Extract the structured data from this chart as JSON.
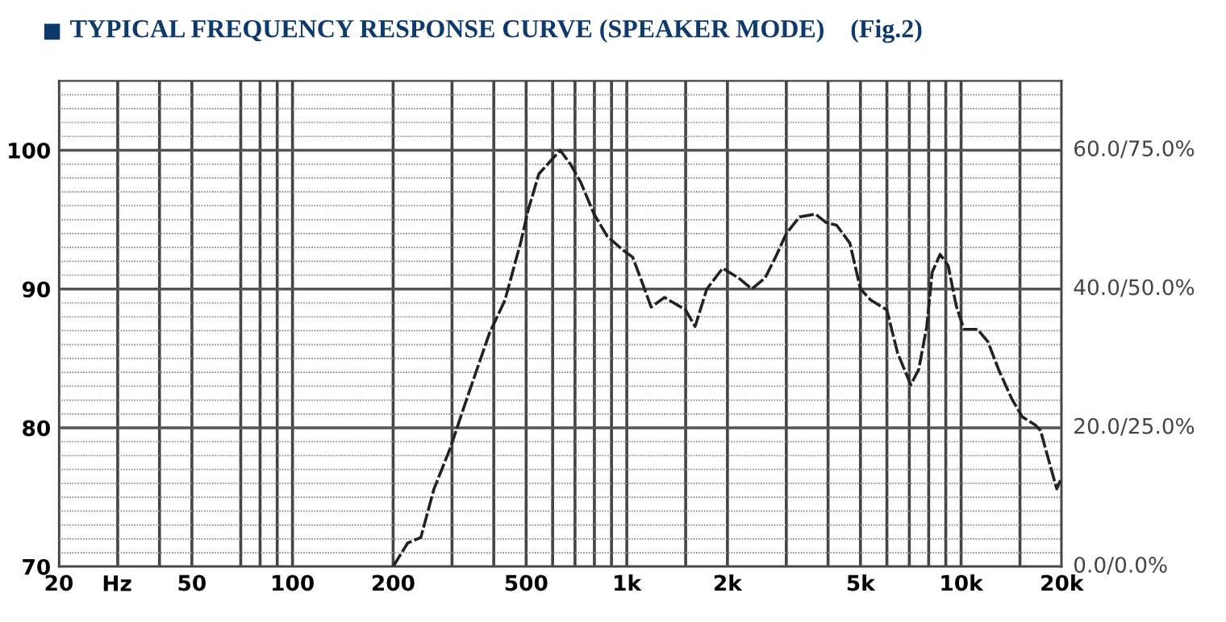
{
  "chart_data": {
    "type": "line",
    "title": "TYPICAL FREQUENCY RESPONSE CURVE (SPEAKER MODE)    (Fig.2)",
    "xlabel": "Hz",
    "log": "x",
    "grid": true,
    "line_style": "dashed",
    "marker": "none",
    "xlim": [
      20,
      20000
    ],
    "ylim": [
      70,
      105
    ],
    "annotations": [
      "0.0/0.0%",
      "20.0/25.0%",
      "40.0/50.0%",
      "60.0/75.0%"
    ],
    "xticks": [
      20,
      {
        "value": 30,
        "label": null
      },
      {
        "value": 40,
        "label": null
      },
      50,
      {
        "value": 70,
        "label": null
      },
      {
        "value": 80,
        "label": null
      },
      {
        "value": 90,
        "label": null
      },
      100,
      200,
      {
        "value": 300,
        "label": null
      },
      {
        "value": 400,
        "label": null
      },
      500,
      {
        "value": 600,
        "label": null
      },
      {
        "value": 700,
        "label": null
      },
      {
        "value": 800,
        "label": null
      },
      {
        "value": 900,
        "label": null
      },
      {
        "value": 1000,
        "label": "1k"
      },
      {
        "value": 1500,
        "label": null
      },
      {
        "value": 2000,
        "label": "2k"
      },
      {
        "value": 3000,
        "label": null
      },
      {
        "value": 4000,
        "label": null
      },
      {
        "value": 5000,
        "label": "5k"
      },
      {
        "value": 6000,
        "label": null
      },
      {
        "value": 7000,
        "label": null
      },
      {
        "value": 8000,
        "label": null
      },
      {
        "value": 9000,
        "label": null
      },
      {
        "value": 10000,
        "label": "10k"
      },
      {
        "value": 15000,
        "label": null
      },
      {
        "value": 20000,
        "label": "20k"
      }
    ],
    "yticks": [
      70,
      80,
      90,
      100
    ],
    "series": [
      {
        "color": "#222222",
        "x": [
          200,
          221,
          242,
          265,
          296,
          329,
          388,
          432,
          482,
          507,
          546,
          632,
          678,
          728,
          798,
          874,
          975,
          1041,
          1099,
          1183,
          1296,
          1499,
          1601,
          1735,
          1936,
          2160,
          2366,
          2592,
          2786,
          3000,
          3283,
          3666,
          3943,
          4244,
          4650,
          5000,
          5371,
          5997,
          6456,
          7071,
          7467,
          7895,
          8193,
          8654,
          9146,
          9669,
          10200,
          11200,
          12030,
          12950,
          14170,
          15230,
          16670,
          17290,
          18270,
          19330,
          19900
        ],
        "values": [
          70,
          71.7,
          72.1,
          75.6,
          78.5,
          81.8,
          86.8,
          89.2,
          93.4,
          95.7,
          98.3,
          100,
          99,
          97.7,
          95.4,
          93.8,
          92.8,
          92.3,
          90.8,
          88.7,
          89.4,
          88.5,
          87.3,
          90,
          91.5,
          90.8,
          90,
          90.8,
          92.3,
          94,
          95.2,
          95.4,
          94.8,
          94.6,
          93.3,
          90,
          89.2,
          88.5,
          85.4,
          83.1,
          84.2,
          87.3,
          91.2,
          92.5,
          91.7,
          88.8,
          87.1,
          87.1,
          86.2,
          84.2,
          82.1,
          80.8,
          80.2,
          79.8,
          77.7,
          75.6,
          76.3
        ]
      }
    ]
  }
}
